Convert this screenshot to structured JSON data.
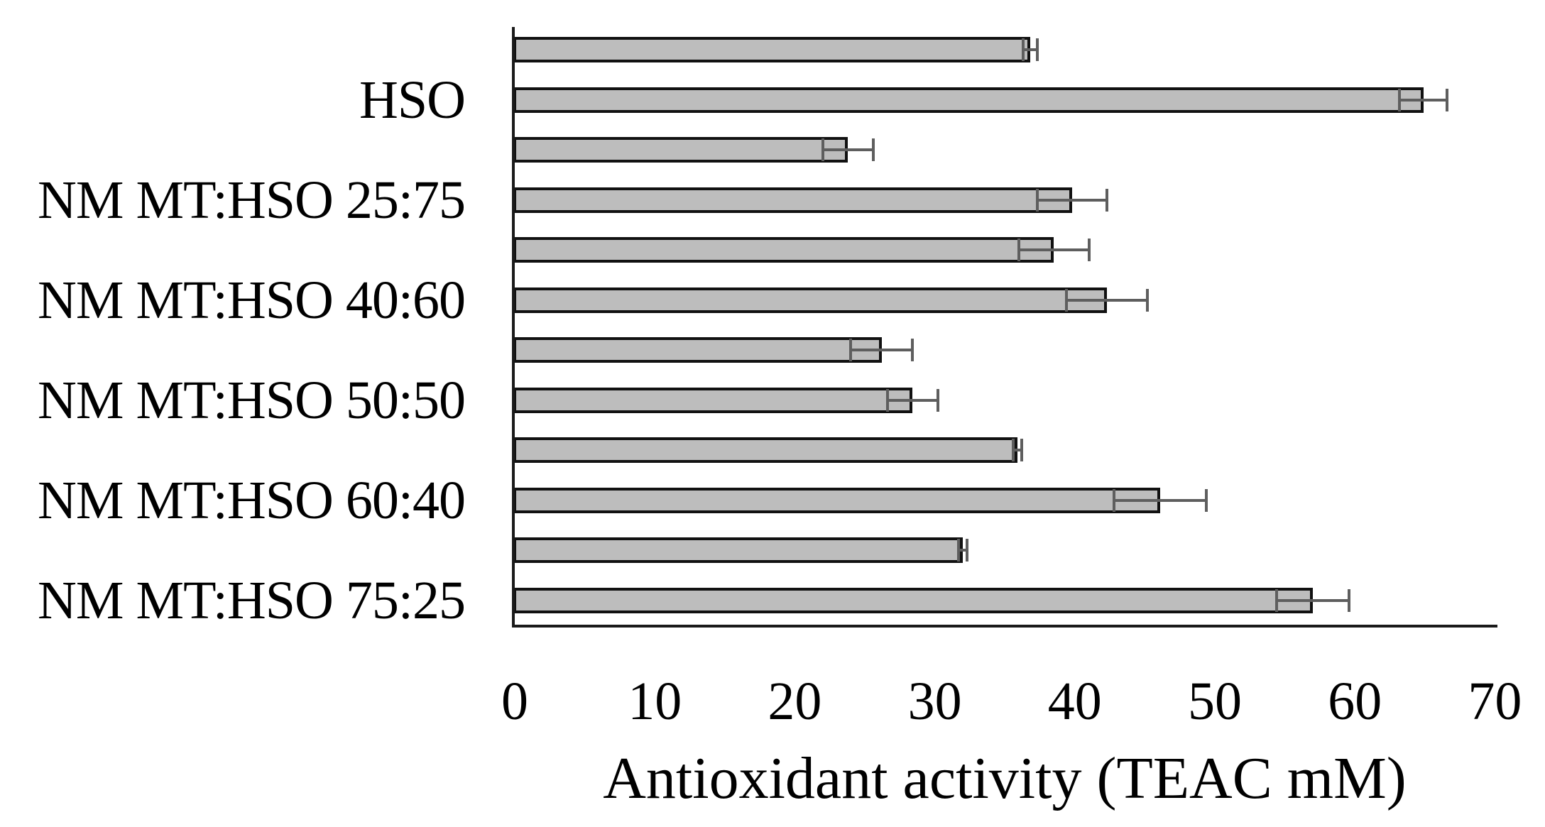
{
  "figure": {
    "xlabel": "Antioxidant activity (TEAC mM)"
  },
  "chart_data": {
    "type": "bar",
    "orientation": "horizontal",
    "title": "",
    "xlabel": "Antioxidant activity (TEAC mM)",
    "ylabel": "",
    "xlim": [
      0,
      70
    ],
    "x_ticks": [
      0,
      10,
      20,
      30,
      40,
      50,
      60,
      70
    ],
    "grid": false,
    "legend_position": "none",
    "bar_fill_color": "#bdbdbd",
    "bar_border_color": "#111111",
    "error_bar_color": "#5e5e5e",
    "axis_color": "#1a1a1a",
    "categories": [
      "HSO",
      "NM MT:HSO 25:75",
      "NM MT:HSO 40:60",
      "NM MT:HSO 50:50",
      "NM MT:HSO 60:40",
      "NM MT:HSO 75:25"
    ],
    "series": [
      {
        "name": "upper bar",
        "values": [
          36.8,
          23.8,
          38.5,
          26.2,
          35.9,
          32.0
        ],
        "errors": [
          0.5,
          1.8,
          2.5,
          2.2,
          0.3,
          0.3
        ]
      },
      {
        "name": "lower bar",
        "values": [
          64.9,
          39.8,
          42.3,
          28.4,
          46.1,
          57.0
        ],
        "errors": [
          1.7,
          2.5,
          2.9,
          1.8,
          3.3,
          2.6
        ]
      }
    ]
  }
}
